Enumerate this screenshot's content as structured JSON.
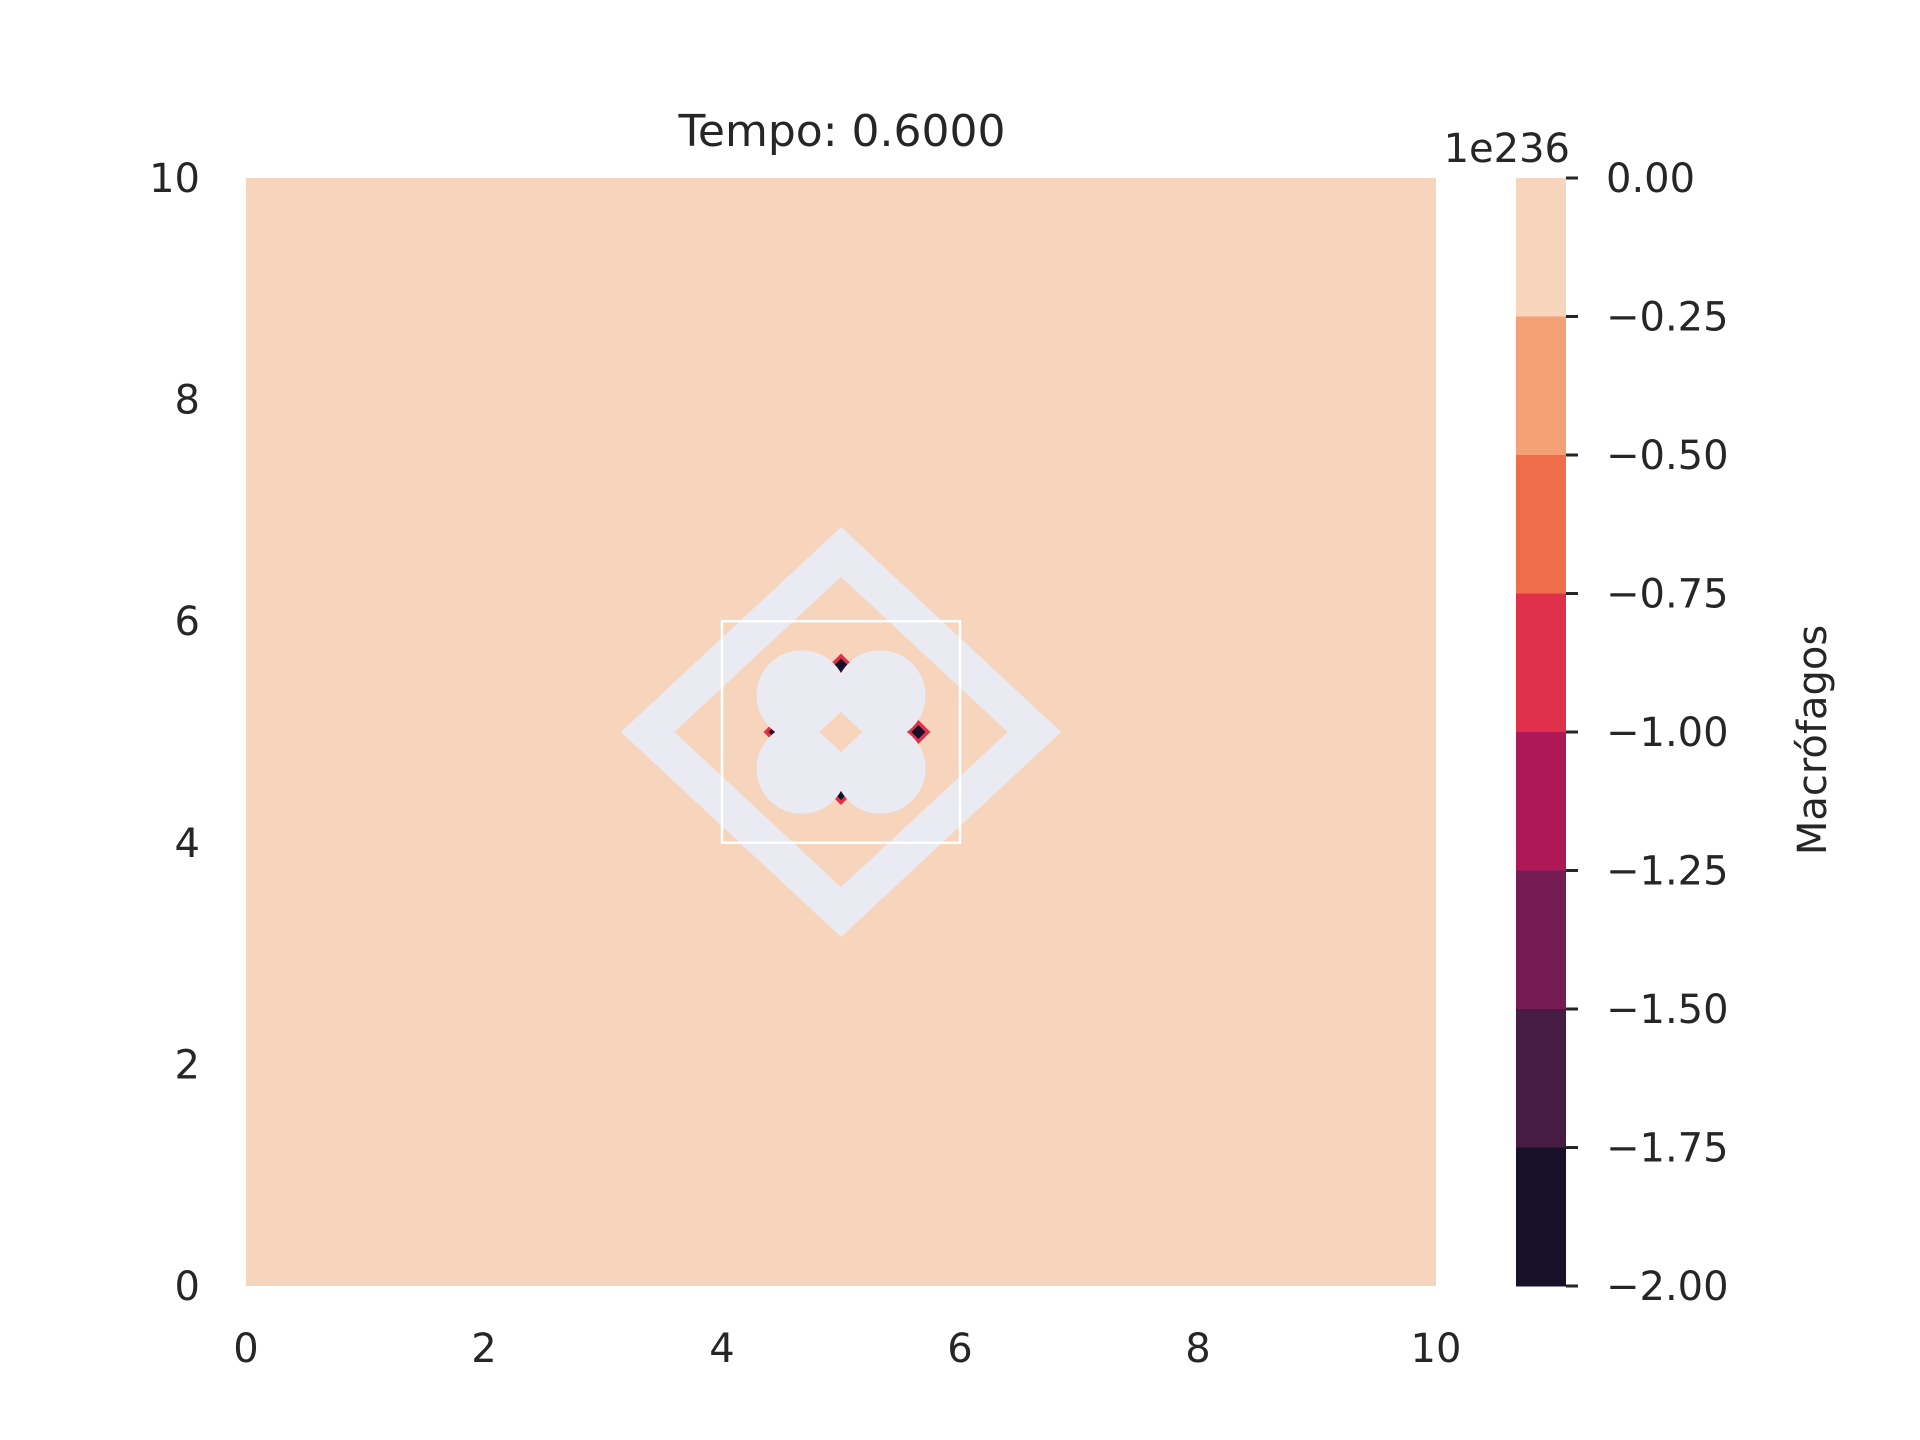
{
  "chart_data": {
    "type": "heatmap",
    "subtype": "filled-contour",
    "title": "Tempo: 0.6000",
    "xlabel": "",
    "ylabel": "",
    "xlim": [
      0,
      10
    ],
    "ylim": [
      0,
      10
    ],
    "x_ticks": [
      "0",
      "2",
      "4",
      "6",
      "8",
      "10"
    ],
    "y_ticks": [
      "0",
      "2",
      "4",
      "6",
      "8",
      "10"
    ],
    "grid": false,
    "field": {
      "background_value_range": [
        -0.25,
        0.0
      ],
      "undefined_regions": [
        {
          "name": "outer-ring",
          "shape": "diamond-ring",
          "center": [
            5,
            5
          ],
          "outer_half_diagonal": 1.85,
          "inner_half_diagonal": 1.4
        },
        {
          "name": "inner-cluster",
          "shape": "four-lobe",
          "center": [
            5,
            5
          ],
          "extent": [
            4.45,
            5.65
          ]
        }
      ],
      "minimum_spots": [
        {
          "x": 5.0,
          "y": 5.6
        },
        {
          "x": 5.0,
          "y": 4.45
        },
        {
          "x": 4.45,
          "y": 5.0
        },
        {
          "x": 5.65,
          "y": 5.0
        }
      ],
      "square_outline": {
        "x": [
          4,
          6
        ],
        "y": [
          4,
          6
        ]
      }
    },
    "colorbar": {
      "label": "Macrófagos",
      "offset_text": "1e236",
      "levels": [
        0.0,
        -0.25,
        -0.5,
        -0.75,
        -1.0,
        -1.25,
        -1.5,
        -1.75,
        -2.0
      ],
      "tick_labels": [
        "0.00",
        "−0.25",
        "−0.50",
        "−0.75",
        "−1.00",
        "−1.25",
        "−1.50",
        "−1.75",
        "−2.00"
      ],
      "colors": [
        "#f7d4bc",
        "#f4a076",
        "#ef6d4b",
        "#e0314b",
        "#ae1856",
        "#761c54",
        "#461c44",
        "#180f29"
      ]
    },
    "nan_color": "#e9eaf2"
  }
}
